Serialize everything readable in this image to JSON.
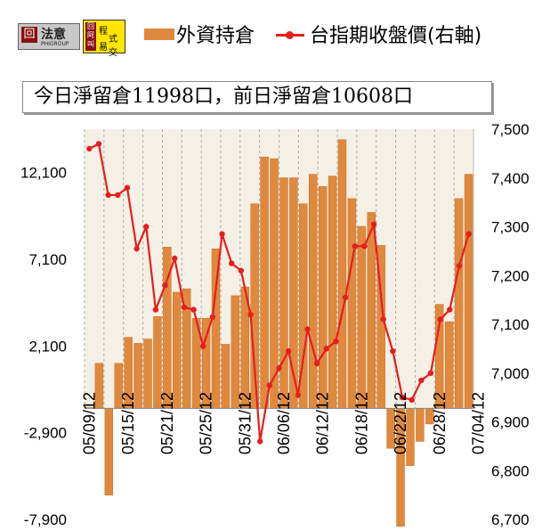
{
  "logos": {
    "logo1": {
      "mark": "回",
      "name": "法意",
      "sub": "PHIGROUP"
    },
    "logo2": {
      "mark": "回阿叫",
      "w1": "程",
      "w2": "易",
      "w3": "式交"
    }
  },
  "legend": {
    "bars_label": "外資持倉",
    "line_label": "台指期收盤價(右軸)"
  },
  "info_box": "今日淨留倉11998口，前日淨留倉10608口",
  "colors": {
    "bar": "#e0893d",
    "line": "#e61e1e",
    "plot_bg": "#f5f0e6"
  },
  "chart_data": {
    "type": "bar+line",
    "left_axis": {
      "ticks": [
        "12,100",
        "7,100",
        "2,100",
        "-2,900",
        "-7,900"
      ],
      "ylim": [
        -7900,
        14600
      ],
      "zero_baseline": -1500
    },
    "right_axis": {
      "ticks": [
        "7,500",
        "7,400",
        "7,300",
        "7,200",
        "7,100",
        "7,000",
        "6,900",
        "6,800",
        "6,700"
      ],
      "ylim": [
        6700,
        7500
      ]
    },
    "x_tick_labels": [
      "05/09/12",
      "05/15/12",
      "05/21/12",
      "05/25/12",
      "05/31/12",
      "06/06/12",
      "06/12/12",
      "06/18/12",
      "06/22/12",
      "06/28/12",
      "07/04/12"
    ],
    "x_tick_label_index": [
      0,
      4,
      8,
      12,
      16,
      20,
      24,
      28,
      32,
      36,
      40
    ],
    "series": [
      {
        "kind": "bar",
        "values": [
          -1450,
          1100,
          -6500,
          1100,
          2600,
          2250,
          2500,
          3800,
          7800,
          5200,
          5400,
          3700,
          3700,
          7700,
          2200,
          5000,
          5500,
          10300,
          13000,
          12900,
          11800,
          11800,
          10300,
          12000,
          11300,
          11900,
          14000,
          10600,
          9000,
          9800,
          7900,
          -3800,
          -8300,
          -4800,
          -3400,
          -2400,
          4500,
          3500,
          10600,
          12000
        ]
      },
      {
        "kind": "line",
        "axis": "right",
        "values": [
          7460,
          7470,
          7365,
          7365,
          7380,
          7255,
          7300,
          7130,
          7180,
          7235,
          7135,
          7130,
          7055,
          7115,
          7285,
          7225,
          7210,
          7120,
          6860,
          6975,
          7010,
          7045,
          6955,
          7090,
          7020,
          7050,
          7065,
          7155,
          7260,
          7260,
          7305,
          7110,
          7045,
          6950,
          6945,
          6985,
          7000,
          7110,
          7130,
          7220,
          7285
        ]
      }
    ],
    "grid": true
  }
}
